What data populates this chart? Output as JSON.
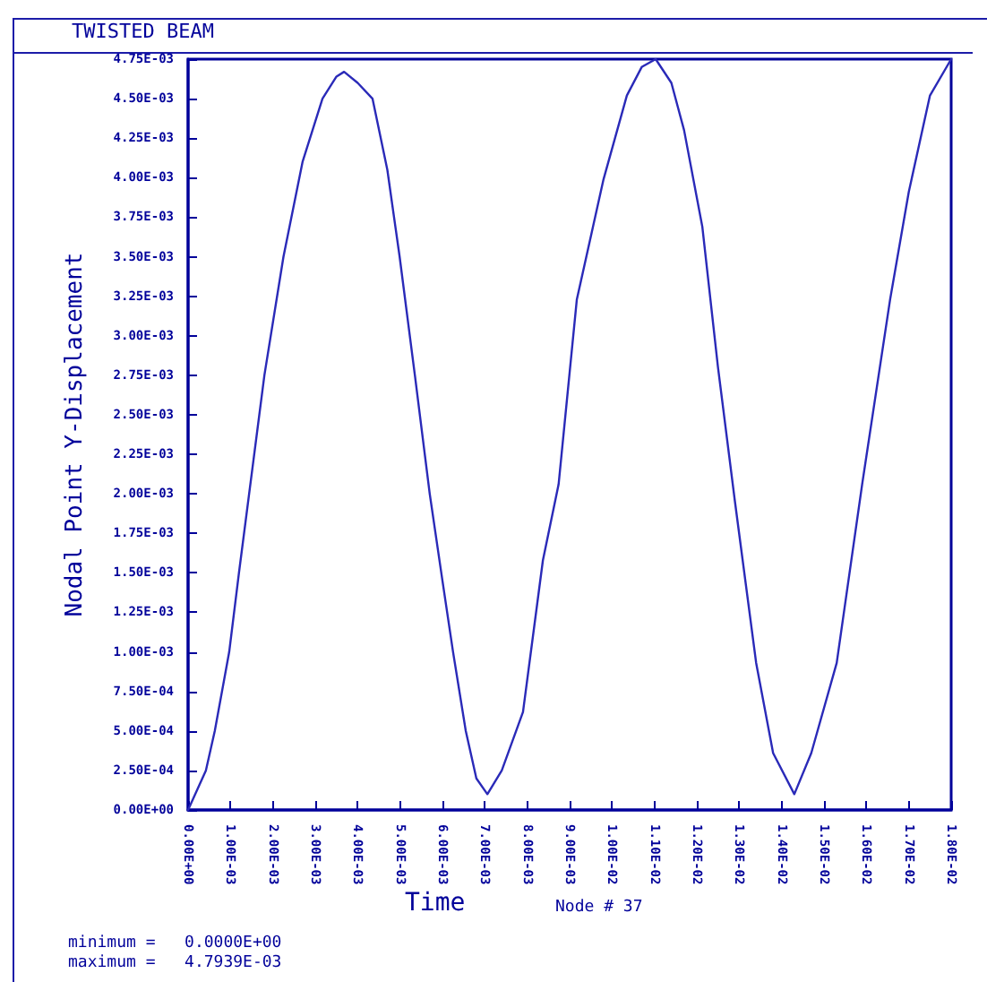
{
  "chart_data": {
    "type": "line",
    "title": "TWISTED BEAM",
    "xlabel": "Time",
    "ylabel": "Nodal Point Y-Displacement",
    "annotations": [
      "Node # 37",
      "minimum =   0.0000E+00",
      "maximum =   4.7939E-03"
    ],
    "x": [
      0,
      0.00042,
      0.00063,
      0.00097,
      0.0012,
      0.00144,
      0.0018,
      0.00225,
      0.0027,
      0.00317,
      0.0035,
      0.00368,
      0.004,
      0.00435,
      0.0047,
      0.00499,
      0.00535,
      0.0057,
      0.006,
      0.00625,
      0.00655,
      0.0068,
      0.00706,
      0.0074,
      0.0079,
      0.00837,
      0.00874,
      0.00917,
      0.0098,
      0.01035,
      0.0107,
      0.01103,
      0.0114,
      0.0117,
      0.01213,
      0.0125,
      0.0129,
      0.0134,
      0.0138,
      0.0143,
      0.0147,
      0.0153,
      0.0159,
      0.01656,
      0.017,
      0.0175,
      0.018
    ],
    "series": [
      {
        "color": "#2a2ab8",
        "values": [
          0,
          0.00025,
          0.0005,
          0.001,
          0.0015,
          0.002,
          0.00275,
          0.0035,
          0.0041,
          0.0045,
          0.00464,
          0.00467,
          0.0046,
          0.0045,
          0.00405,
          0.0035,
          0.00275,
          0.002,
          0.00145,
          0.001,
          0.0005,
          0.0002,
          0.0001,
          0.00025,
          0.00062,
          0.00158,
          0.00206,
          0.00323,
          0.00399,
          0.00452,
          0.0047,
          0.00475,
          0.0046,
          0.0043,
          0.00369,
          0.0028,
          0.00195,
          0.00093,
          0.00036,
          0.0001,
          0.00036,
          0.00093,
          0.00206,
          0.00323,
          0.00391,
          0.00452,
          0.00475
        ]
      }
    ],
    "xlim": [
      0,
      0.018
    ],
    "xticks": [
      {
        "value": 0,
        "label": "0.00E+00"
      },
      {
        "value": 0.001,
        "label": "1.00E-03"
      },
      {
        "value": 0.002,
        "label": "2.00E-03"
      },
      {
        "value": 0.003,
        "label": "3.00E-03"
      },
      {
        "value": 0.004,
        "label": "4.00E-03"
      },
      {
        "value": 0.005,
        "label": "5.00E-03"
      },
      {
        "value": 0.006,
        "label": "6.00E-03"
      },
      {
        "value": 0.007,
        "label": "7.00E-03"
      },
      {
        "value": 0.008,
        "label": "8.00E-03"
      },
      {
        "value": 0.009,
        "label": "9.00E-03"
      },
      {
        "value": 0.01,
        "label": "1.00E-02"
      },
      {
        "value": 0.011,
        "label": "1.10E-02"
      },
      {
        "value": 0.012,
        "label": "1.20E-02"
      },
      {
        "value": 0.013,
        "label": "1.30E-02"
      },
      {
        "value": 0.014,
        "label": "1.40E-02"
      },
      {
        "value": 0.015,
        "label": "1.50E-02"
      },
      {
        "value": 0.016,
        "label": "1.60E-02"
      },
      {
        "value": 0.017,
        "label": "1.70E-02"
      },
      {
        "value": 0.018,
        "label": "1.80E-02"
      }
    ],
    "ylim": [
      0,
      0.00475
    ],
    "yticks": [
      {
        "value": 0,
        "label": "0.00E+00"
      },
      {
        "value": 0.00025,
        "label": "2.50E-04"
      },
      {
        "value": 0.0005,
        "label": "5.00E-04"
      },
      {
        "value": 0.00075,
        "label": "7.50E-04"
      },
      {
        "value": 0.001,
        "label": "1.00E-03"
      },
      {
        "value": 0.00125,
        "label": "1.25E-03"
      },
      {
        "value": 0.0015,
        "label": "1.50E-03"
      },
      {
        "value": 0.00175,
        "label": "1.75E-03"
      },
      {
        "value": 0.002,
        "label": "2.00E-03"
      },
      {
        "value": 0.00225,
        "label": "2.25E-03"
      },
      {
        "value": 0.0025,
        "label": "2.50E-03"
      },
      {
        "value": 0.00275,
        "label": "2.75E-03"
      },
      {
        "value": 0.003,
        "label": "3.00E-03"
      },
      {
        "value": 0.00325,
        "label": "3.25E-03"
      },
      {
        "value": 0.0035,
        "label": "3.50E-03"
      },
      {
        "value": 0.00375,
        "label": "3.75E-03"
      },
      {
        "value": 0.004,
        "label": "4.00E-03"
      },
      {
        "value": 0.00425,
        "label": "4.25E-03"
      },
      {
        "value": 0.0045,
        "label": "4.50E-03"
      },
      {
        "value": 0.00475,
        "label": "4.75E-03"
      }
    ],
    "grid": false,
    "marker": "none",
    "line_style": "solid"
  }
}
